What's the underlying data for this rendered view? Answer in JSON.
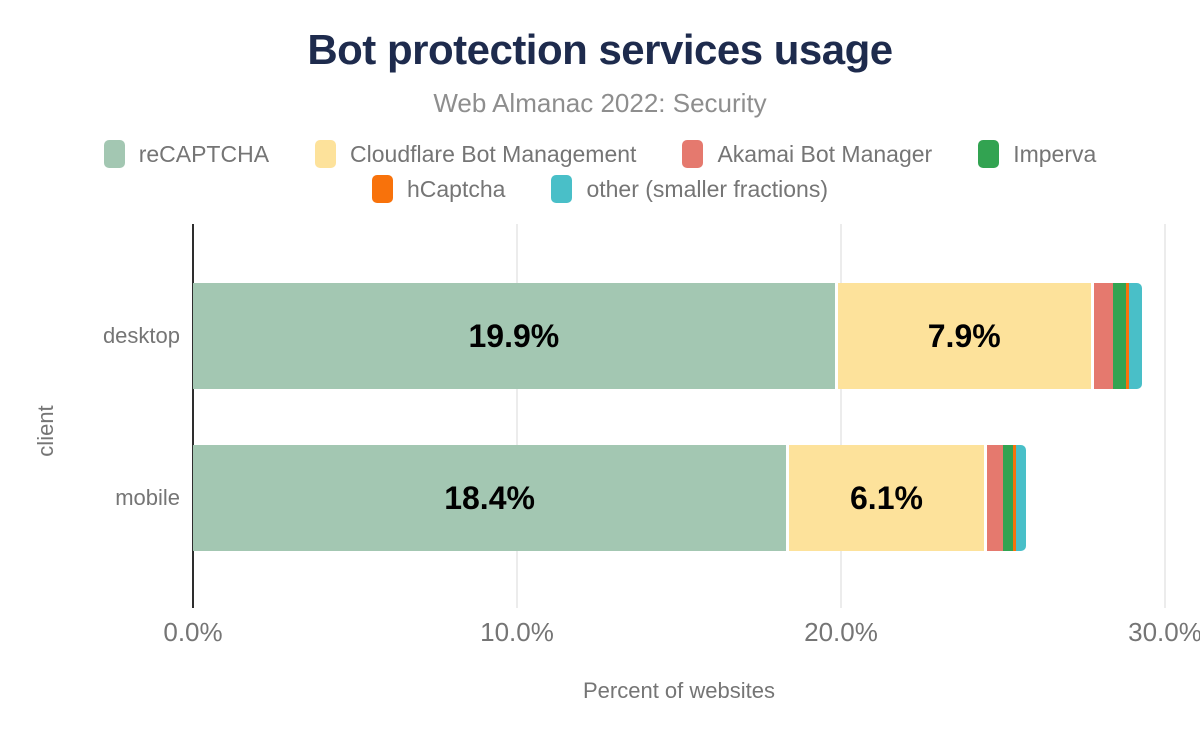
{
  "header": {
    "title": "Bot protection services usage",
    "subtitle": "Web Almanac 2022: Security"
  },
  "colors": {
    "title_text": "#1e2b4d",
    "subtitle_text": "#8e8e8e",
    "axis_text": "#757575",
    "bar_label_text": "#000000",
    "axis_line": "#2e2e2e",
    "gridline": "#ececec"
  },
  "legend": {
    "row_split": [
      4,
      2
    ]
  },
  "chart_data": {
    "type": "bar",
    "orientation": "horizontal-stacked",
    "title": "Bot protection services usage",
    "subtitle": "Web Almanac 2022: Security",
    "categories": [
      "desktop",
      "mobile"
    ],
    "series": [
      {
        "name": "reCAPTCHA",
        "color": "#a3c7b2",
        "values": [
          19.9,
          18.4
        ],
        "labels": [
          "19.9%",
          "18.4%"
        ],
        "gap_after": true
      },
      {
        "name": "Cloudflare Bot Management",
        "color": "#fde29b",
        "values": [
          7.9,
          6.1
        ],
        "labels": [
          "7.9%",
          "6.1%"
        ],
        "gap_after": true
      },
      {
        "name": "Akamai Bot Manager",
        "color": "#e5796e",
        "values": [
          0.6,
          0.5
        ]
      },
      {
        "name": "Imperva",
        "color": "#32a351",
        "values": [
          0.4,
          0.3
        ]
      },
      {
        "name": "hCaptcha",
        "color": "#f8720b",
        "values": [
          0.1,
          0.1
        ]
      },
      {
        "name": "other (smaller fractions)",
        "color": "#49bfc8",
        "values": [
          0.4,
          0.3
        ]
      }
    ],
    "xlabel": "Percent of websites",
    "ylabel": "client",
    "xlim": [
      0,
      30
    ],
    "x_ticks": [
      "0.0%",
      "10.0%",
      "20.0%",
      "30.0%"
    ],
    "x_tick_values": [
      0,
      10,
      20,
      30
    ],
    "grid": "vertical",
    "legend_position": "top"
  }
}
